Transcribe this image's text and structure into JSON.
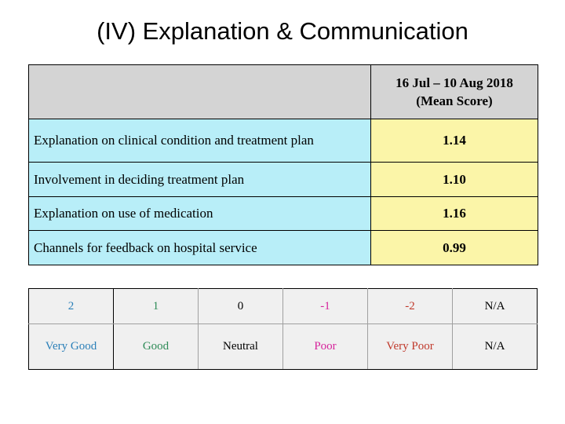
{
  "title": "(IV) Explanation & Communication",
  "table": {
    "period_line1": "16 Jul – 10 Aug 2018",
    "period_line2": "(Mean Score)",
    "rows": [
      {
        "label": "Explanation on clinical condition and treatment plan",
        "score": "1.14"
      },
      {
        "label": "Involvement in deciding treatment plan",
        "score": "1.10"
      },
      {
        "label": "Explanation on use of medication",
        "score": "1.16"
      },
      {
        "label": "Channels for feedback on hospital service",
        "score": "0.99"
      }
    ]
  },
  "legend": {
    "items": [
      {
        "value": "2",
        "label": "Very Good",
        "color": "#2a7fb8"
      },
      {
        "value": "1",
        "label": "Good",
        "color": "#2e8b57"
      },
      {
        "value": "0",
        "label": "Neutral",
        "color": "#000000"
      },
      {
        "value": "-1",
        "label": "Poor",
        "color": "#d6249c"
      },
      {
        "value": "-2",
        "label": "Very Poor",
        "color": "#c0392b"
      },
      {
        "value": "N/A",
        "label": "N/A",
        "color": "#000000"
      }
    ]
  }
}
